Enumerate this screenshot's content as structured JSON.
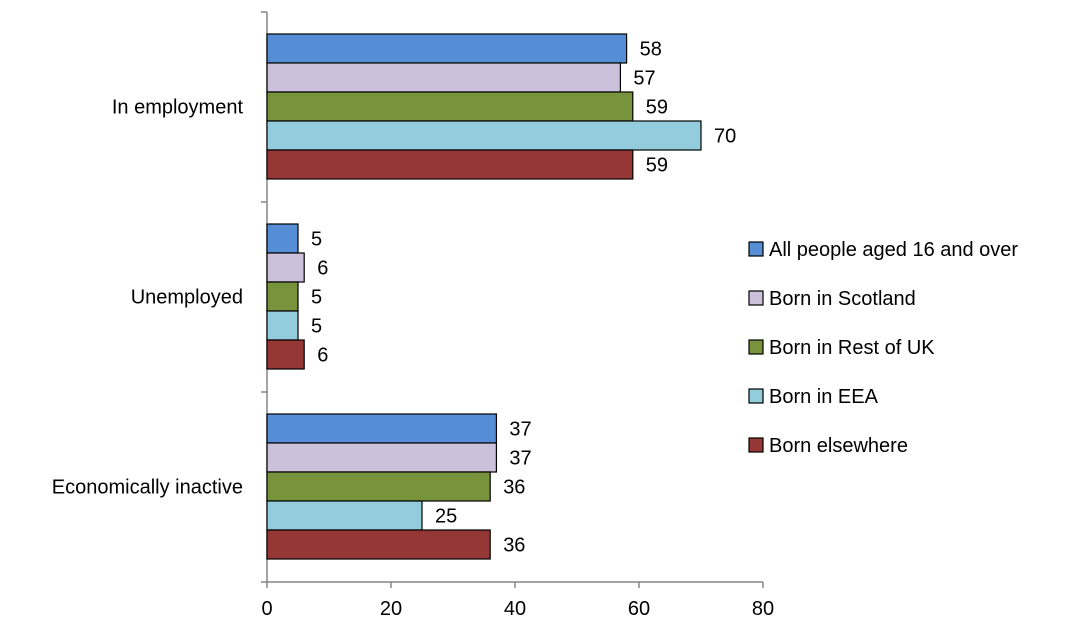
{
  "chart_data": {
    "type": "bar",
    "orientation": "horizontal",
    "categories": [
      "In employment",
      "Unemployed",
      "Economically inactive"
    ],
    "series": [
      {
        "name": "All people aged 16 and over",
        "color": "#558ED5",
        "values": [
          58,
          5,
          37
        ]
      },
      {
        "name": "Born in Scotland",
        "color": "#CCC1DA",
        "values": [
          57,
          6,
          37
        ]
      },
      {
        "name": "Born in Rest of UK",
        "color": "#77933C",
        "values": [
          59,
          5,
          36
        ]
      },
      {
        "name": "Born in EEA",
        "color": "#93CDDD",
        "values": [
          70,
          5,
          25
        ]
      },
      {
        "name": "Born elsewhere",
        "color": "#953735",
        "values": [
          59,
          6,
          36
        ]
      }
    ],
    "xlim": [
      0,
      80
    ],
    "xticks": [
      0,
      20,
      40,
      60,
      80
    ],
    "grid": false,
    "legend_position": "right",
    "data_labels": true
  }
}
